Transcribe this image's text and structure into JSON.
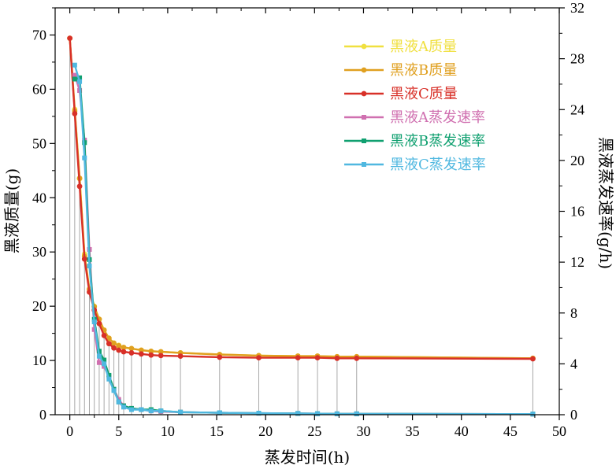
{
  "chart_data": {
    "type": "line",
    "xlabel": "蒸发时间(h)",
    "ylabel_left": "黑液质量(g)",
    "ylabel_right": "黑液蒸发速率(g/h)",
    "xlim": [
      -1.5,
      50
    ],
    "ylim_left": [
      0,
      75
    ],
    "ylim_right": [
      0,
      32
    ],
    "x_ticks": [
      0,
      5,
      10,
      15,
      20,
      25,
      30,
      35,
      40,
      45,
      50
    ],
    "y_left_ticks": [
      0,
      10,
      20,
      30,
      40,
      50,
      60,
      70
    ],
    "y_right_ticks": [
      0,
      4,
      8,
      12,
      16,
      20,
      24,
      28,
      32
    ],
    "drop_lines": true,
    "legend_position": "top-right",
    "series": [
      {
        "name": "黑液A质量",
        "axis": "left",
        "color": "#f0e040",
        "marker": "circle",
        "x": [
          0,
          0.5,
          1,
          1.5,
          2,
          2.5,
          3,
          3.5,
          4,
          4.5,
          5,
          5.5,
          6.3,
          7.3,
          8.3,
          9.3,
          11.3,
          15.3,
          19.3,
          23.3,
          25.3,
          27.3,
          29.3,
          47.3
        ],
        "y": [
          69.4,
          56.3,
          43.5,
          29.6,
          23.2,
          20.0,
          17.6,
          15.6,
          14.1,
          13.2,
          12.8,
          12.4,
          12.2,
          11.9,
          11.7,
          11.6,
          11.4,
          11.1,
          10.9,
          10.8,
          10.8,
          10.7,
          10.7,
          10.4
        ]
      },
      {
        "name": "黑液B质量",
        "axis": "left",
        "color": "#e0a020",
        "marker": "circle",
        "x": [
          0,
          0.5,
          1,
          1.5,
          2,
          2.5,
          3,
          3.5,
          4,
          4.5,
          5,
          5.5,
          6.3,
          7.3,
          8.3,
          9.3,
          11.3,
          15.3,
          19.3,
          23.3,
          25.3,
          27.3,
          29.3,
          47.3
        ],
        "y": [
          69.4,
          56.0,
          43.6,
          29.2,
          23.1,
          19.9,
          17.6,
          15.6,
          14.1,
          13.2,
          12.7,
          12.4,
          12.2,
          11.9,
          11.7,
          11.6,
          11.4,
          11.1,
          10.9,
          10.8,
          10.8,
          10.7,
          10.7,
          10.4
        ]
      },
      {
        "name": "黑液C质量",
        "axis": "left",
        "color": "#d83028",
        "marker": "circle",
        "x": [
          0,
          0.5,
          1,
          1.5,
          2,
          2.5,
          3,
          3.5,
          4,
          4.5,
          5,
          5.5,
          6.3,
          7.3,
          8.3,
          9.3,
          11.3,
          15.3,
          19.3,
          23.3,
          25.3,
          27.3,
          29.3,
          47.3
        ],
        "y": [
          69.4,
          55.5,
          42.1,
          28.7,
          22.6,
          19.3,
          16.8,
          14.6,
          13.1,
          12.3,
          11.9,
          11.6,
          11.4,
          11.2,
          11.0,
          10.9,
          10.8,
          10.6,
          10.5,
          10.5,
          10.5,
          10.4,
          10.4,
          10.3
        ]
      },
      {
        "name": "黑液A蒸发速率",
        "axis": "right",
        "color": "#d070b0",
        "marker": "square",
        "x": [
          0.5,
          1,
          1.5,
          2,
          2.5,
          3,
          3.5,
          4,
          4.5,
          5,
          5.5,
          6.3,
          7.3,
          8.3,
          9.3,
          11.3,
          15.3,
          19.3,
          23.3,
          25.3,
          27.3,
          29.3,
          47.3
        ],
        "y": [
          26.7,
          25.5,
          21.6,
          13.0,
          6.7,
          4.1,
          3.8,
          3.0,
          2.0,
          1.2,
          0.7,
          0.5,
          0.4,
          0.3,
          0.25,
          0.2,
          0.15,
          0.12,
          0.1,
          0.08,
          0.07,
          0.07,
          0.05
        ]
      },
      {
        "name": "黑液B蒸发速率",
        "axis": "right",
        "color": "#10a070",
        "marker": "square",
        "x": [
          0.5,
          1,
          1.5,
          2,
          2.5,
          3,
          3.5,
          4,
          4.5,
          5,
          5.5,
          6.3,
          7.3,
          8.3,
          9.3,
          11.3,
          15.3,
          19.3,
          23.3,
          25.3,
          27.3,
          29.3,
          47.3
        ],
        "y": [
          26.4,
          26.5,
          21.4,
          12.2,
          7.5,
          5.0,
          4.3,
          3.1,
          2.0,
          1.0,
          0.7,
          0.5,
          0.4,
          0.4,
          0.3,
          0.2,
          0.15,
          0.12,
          0.1,
          0.08,
          0.07,
          0.07,
          0.05
        ]
      },
      {
        "name": "黑液C蒸发速率",
        "axis": "right",
        "color": "#50b8e0",
        "marker": "square",
        "x": [
          0.5,
          1,
          1.5,
          2,
          2.5,
          3,
          3.5,
          4,
          4.5,
          5,
          5.5,
          6.3,
          7.3,
          8.3,
          9.3,
          11.3,
          15.3,
          19.3,
          23.3,
          25.3,
          27.3,
          29.3,
          47.3
        ],
        "y": [
          27.5,
          26.2,
          20.2,
          11.7,
          7.3,
          4.6,
          4.0,
          2.8,
          1.9,
          1.0,
          0.6,
          0.4,
          0.4,
          0.3,
          0.3,
          0.2,
          0.15,
          0.12,
          0.1,
          0.08,
          0.07,
          0.07,
          0.05
        ]
      }
    ]
  }
}
